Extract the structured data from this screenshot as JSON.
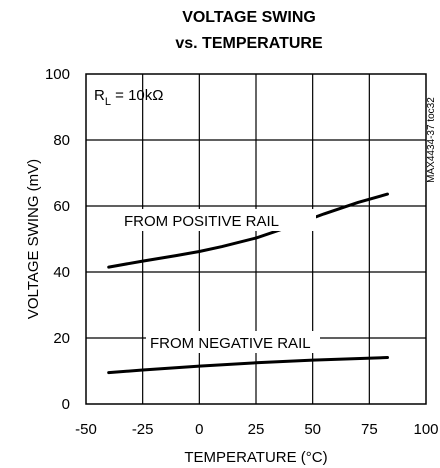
{
  "chart_data": {
    "type": "line",
    "title_lines": [
      "VOLTAGE SWING",
      "vs. TEMPERATURE"
    ],
    "xlabel": "TEMPERATURE (°C)",
    "ylabel": "VOLTAGE SWING (mV)",
    "xlim": [
      -50,
      100
    ],
    "ylim": [
      0,
      100
    ],
    "xticks": [
      -50,
      -25,
      0,
      25,
      50,
      75,
      100
    ],
    "yticks": [
      0,
      20,
      40,
      60,
      80,
      100
    ],
    "grid": true,
    "condition": {
      "main": "R",
      "sub": "L",
      "rest": " = 10kΩ"
    },
    "side_label": "MAX4434-37 toc32",
    "series": [
      {
        "label": "FROM POSITIVE RAIL",
        "x": [
          -40,
          -25,
          -10,
          0,
          10,
          25,
          40,
          55,
          70,
          83
        ],
        "y": [
          41.5,
          43.3,
          45,
          46.2,
          47.7,
          50.3,
          53.8,
          57.6,
          61.1,
          63.6
        ]
      },
      {
        "label": "FROM NEGATIVE RAIL",
        "x": [
          -40,
          -25,
          0,
          25,
          50,
          83
        ],
        "y": [
          9.5,
          10.3,
          11.5,
          12.5,
          13.3,
          14.1
        ]
      }
    ]
  }
}
